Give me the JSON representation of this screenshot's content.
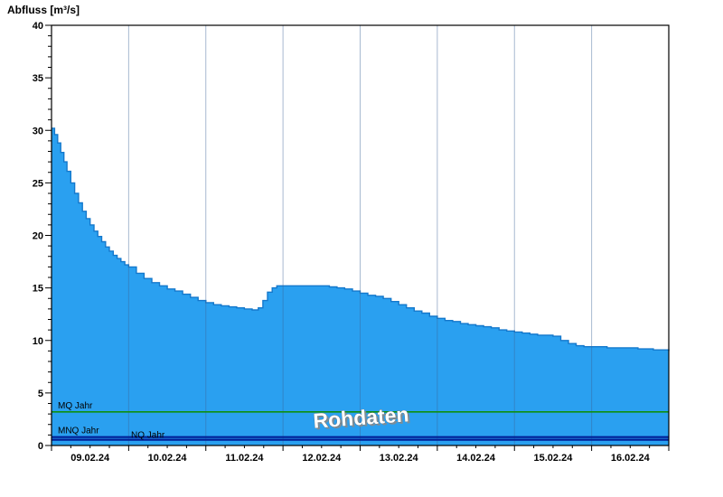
{
  "page": {
    "title": "Abfluss [m³/s]"
  },
  "colors": {
    "area_fill": "#2AA0F0",
    "area_stroke": "#1478CC",
    "grid_line": "rgba(60,100,150,0.45)",
    "axis": "#000000",
    "watermark_fill": "#ffffff",
    "watermark_shadow": "#8a8a8a"
  },
  "chart_data": {
    "type": "area",
    "title": "Abfluss [m³/s]",
    "ylabel": "Abfluss [m³/s]",
    "xlabel": "",
    "watermark": "Rohdaten",
    "legend": "none",
    "grid": "vertical lines at day boundaries",
    "ylim": [
      0,
      40
    ],
    "y_major_step": 5,
    "y_minor_step": 1,
    "x_range_days": [
      0,
      8
    ],
    "categories": [
      "09.02.24",
      "10.02.24",
      "11.02.24",
      "12.02.24",
      "13.02.24",
      "14.02.24",
      "15.02.24",
      "16.02.24"
    ],
    "series": [
      {
        "name": "Abfluss Rohdaten",
        "type": "step-area",
        "color": "#2AA0F0",
        "points": [
          [
            0,
            30.2
          ],
          [
            0.04,
            29.6
          ],
          [
            0.08,
            28.8
          ],
          [
            0.12,
            27.9
          ],
          [
            0.16,
            27.0
          ],
          [
            0.2,
            26.1
          ],
          [
            0.25,
            25.0
          ],
          [
            0.3,
            24.0
          ],
          [
            0.35,
            23.1
          ],
          [
            0.4,
            22.3
          ],
          [
            0.45,
            21.6
          ],
          [
            0.5,
            21.0
          ],
          [
            0.55,
            20.4
          ],
          [
            0.6,
            19.9
          ],
          [
            0.65,
            19.4
          ],
          [
            0.7,
            18.9
          ],
          [
            0.75,
            18.5
          ],
          [
            0.8,
            18.1
          ],
          [
            0.85,
            17.8
          ],
          [
            0.9,
            17.5
          ],
          [
            0.95,
            17.2
          ],
          [
            1.0,
            17.0
          ],
          [
            1.1,
            16.4
          ],
          [
            1.2,
            15.9
          ],
          [
            1.3,
            15.5
          ],
          [
            1.4,
            15.2
          ],
          [
            1.5,
            14.9
          ],
          [
            1.6,
            14.7
          ],
          [
            1.7,
            14.4
          ],
          [
            1.8,
            14.1
          ],
          [
            1.9,
            13.8
          ],
          [
            2.0,
            13.6
          ],
          [
            2.1,
            13.4
          ],
          [
            2.2,
            13.3
          ],
          [
            2.3,
            13.2
          ],
          [
            2.4,
            13.1
          ],
          [
            2.5,
            13.0
          ],
          [
            2.6,
            12.9
          ],
          [
            2.68,
            13.1
          ],
          [
            2.74,
            13.8
          ],
          [
            2.8,
            14.6
          ],
          [
            2.86,
            15.0
          ],
          [
            2.92,
            15.2
          ],
          [
            3.0,
            15.2
          ],
          [
            3.2,
            15.2
          ],
          [
            3.4,
            15.2
          ],
          [
            3.6,
            15.1
          ],
          [
            3.7,
            15.0
          ],
          [
            3.8,
            14.9
          ],
          [
            3.9,
            14.7
          ],
          [
            4.0,
            14.5
          ],
          [
            4.1,
            14.3
          ],
          [
            4.2,
            14.2
          ],
          [
            4.3,
            14.0
          ],
          [
            4.4,
            13.7
          ],
          [
            4.5,
            13.4
          ],
          [
            4.6,
            13.1
          ],
          [
            4.7,
            12.8
          ],
          [
            4.8,
            12.6
          ],
          [
            4.9,
            12.3
          ],
          [
            5.0,
            12.1
          ],
          [
            5.1,
            11.9
          ],
          [
            5.2,
            11.8
          ],
          [
            5.3,
            11.6
          ],
          [
            5.4,
            11.5
          ],
          [
            5.5,
            11.4
          ],
          [
            5.6,
            11.3
          ],
          [
            5.7,
            11.2
          ],
          [
            5.8,
            11.0
          ],
          [
            5.9,
            10.9
          ],
          [
            6.0,
            10.8
          ],
          [
            6.1,
            10.7
          ],
          [
            6.2,
            10.6
          ],
          [
            6.3,
            10.5
          ],
          [
            6.4,
            10.5
          ],
          [
            6.5,
            10.4
          ],
          [
            6.6,
            10.0
          ],
          [
            6.7,
            9.7
          ],
          [
            6.8,
            9.5
          ],
          [
            6.9,
            9.4
          ],
          [
            7.0,
            9.4
          ],
          [
            7.2,
            9.3
          ],
          [
            7.4,
            9.3
          ],
          [
            7.6,
            9.2
          ],
          [
            7.8,
            9.1
          ],
          [
            8.0,
            9.0
          ]
        ]
      }
    ],
    "reference_lines": [
      {
        "label": "MQ Jahr",
        "value": 3.2,
        "color": "#0F8F0F",
        "width": 1.6
      },
      {
        "label": "MNQ Jahr",
        "value": 0.8,
        "color": "#001E96",
        "width": 2.2
      },
      {
        "label": "NQ Jahr",
        "value": 0.55,
        "color": "#001E96",
        "width": 2.2
      }
    ]
  }
}
